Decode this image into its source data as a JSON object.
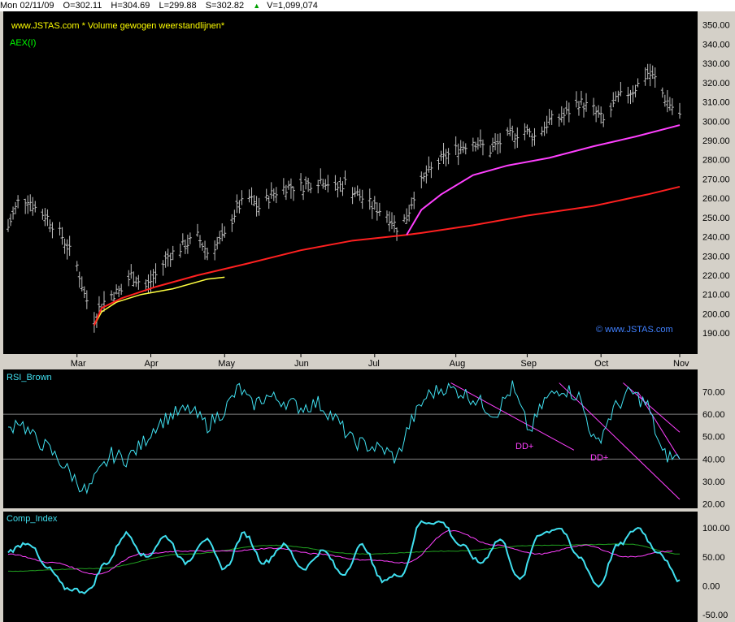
{
  "status": {
    "date": "Mon 02/11/09",
    "open": "O=302.11",
    "high": "H=304.69",
    "low": "L=299.88",
    "close": "S=302.82",
    "volume": "V=1,099,074"
  },
  "colors": {
    "background": "#000000",
    "bars": "#c0c0c0",
    "red_line": "#ff2020",
    "yellow_line": "#ffff40",
    "magenta_line": "#ff40ff",
    "cyan_line": "#40e0f0",
    "green_line": "#20a020",
    "header_text": "#ffff00",
    "aex_text": "#00ff00",
    "watermark": "#4080ff"
  },
  "price_panel": {
    "header": "www.JSTAS.com * Volume gewogen weerstandlijnen*",
    "symbol": "AEX(I)",
    "watermark": "© www.JSTAS.com",
    "y_ticks": [
      "350.00",
      "340.00",
      "330.00",
      "320.00",
      "310.00",
      "300.00",
      "290.00",
      "280.00",
      "270.00",
      "260.00",
      "250.00",
      "240.00",
      "230.00",
      "220.00",
      "210.00",
      "200.00",
      "190.00"
    ],
    "months": [
      "Mar",
      "Apr",
      "May",
      "Jun",
      "Jul",
      "Aug",
      "Sep",
      "Oct",
      "Nov"
    ]
  },
  "rsi_panel": {
    "title": "RSI_Brown",
    "y_ticks": [
      "70.00",
      "60.00",
      "50.00",
      "40.00",
      "30.00",
      "20.00"
    ],
    "annotations": [
      "DD+",
      "DD+"
    ]
  },
  "comp_panel": {
    "title": "Comp_Index",
    "y_ticks": [
      "100.00",
      "50.00",
      "0.00",
      "-50.00"
    ]
  },
  "chart_data": [
    {
      "type": "line",
      "series_kind": "ohlc-bars",
      "symbol": "AEX(I)",
      "x_range": [
        "2009-02-02",
        "2009-11-02"
      ],
      "ylim": [
        185,
        352
      ],
      "closes": [
        {
          "x": "2009-02-02",
          "y": 245
        },
        {
          "x": "2009-02-06",
          "y": 258
        },
        {
          "x": "2009-02-10",
          "y": 260
        },
        {
          "x": "2009-02-13",
          "y": 255
        },
        {
          "x": "2009-02-18",
          "y": 250
        },
        {
          "x": "2009-02-24",
          "y": 240
        },
        {
          "x": "2009-03-02",
          "y": 225
        },
        {
          "x": "2009-03-05",
          "y": 210
        },
        {
          "x": "2009-03-09",
          "y": 198
        },
        {
          "x": "2009-03-12",
          "y": 205
        },
        {
          "x": "2009-03-16",
          "y": 210
        },
        {
          "x": "2009-03-20",
          "y": 212
        },
        {
          "x": "2009-03-24",
          "y": 220
        },
        {
          "x": "2009-03-30",
          "y": 214
        },
        {
          "x": "2009-04-03",
          "y": 220
        },
        {
          "x": "2009-04-08",
          "y": 230
        },
        {
          "x": "2009-04-14",
          "y": 235
        },
        {
          "x": "2009-04-20",
          "y": 240
        },
        {
          "x": "2009-04-24",
          "y": 232
        },
        {
          "x": "2009-05-01",
          "y": 240
        },
        {
          "x": "2009-05-06",
          "y": 255
        },
        {
          "x": "2009-05-11",
          "y": 260
        },
        {
          "x": "2009-05-15",
          "y": 255
        },
        {
          "x": "2009-05-20",
          "y": 262
        },
        {
          "x": "2009-05-26",
          "y": 266
        },
        {
          "x": "2009-06-01",
          "y": 266
        },
        {
          "x": "2009-06-05",
          "y": 268
        },
        {
          "x": "2009-06-10",
          "y": 270
        },
        {
          "x": "2009-06-15",
          "y": 265
        },
        {
          "x": "2009-06-19",
          "y": 268
        },
        {
          "x": "2009-06-24",
          "y": 262
        },
        {
          "x": "2009-06-30",
          "y": 256
        },
        {
          "x": "2009-07-06",
          "y": 252
        },
        {
          "x": "2009-07-10",
          "y": 245
        },
        {
          "x": "2009-07-14",
          "y": 250
        },
        {
          "x": "2009-07-17",
          "y": 262
        },
        {
          "x": "2009-07-22",
          "y": 272
        },
        {
          "x": "2009-07-28",
          "y": 280
        },
        {
          "x": "2009-08-04",
          "y": 286
        },
        {
          "x": "2009-08-10",
          "y": 290
        },
        {
          "x": "2009-08-17",
          "y": 285
        },
        {
          "x": "2009-08-24",
          "y": 292
        },
        {
          "x": "2009-08-31",
          "y": 295
        },
        {
          "x": "2009-09-04",
          "y": 292
        },
        {
          "x": "2009-09-10",
          "y": 300
        },
        {
          "x": "2009-09-16",
          "y": 303
        },
        {
          "x": "2009-09-22",
          "y": 310
        },
        {
          "x": "2009-09-28",
          "y": 306
        },
        {
          "x": "2009-10-02",
          "y": 300
        },
        {
          "x": "2009-10-08",
          "y": 312
        },
        {
          "x": "2009-10-14",
          "y": 316
        },
        {
          "x": "2009-10-20",
          "y": 325
        },
        {
          "x": "2009-10-23",
          "y": 322
        },
        {
          "x": "2009-10-27",
          "y": 312
        },
        {
          "x": "2009-11-02",
          "y": 302.82
        }
      ]
    },
    {
      "type": "line",
      "title": "RSI_Brown",
      "ylim": [
        18,
        80
      ],
      "values": [
        {
          "x": "2009-02-02",
          "y": 52
        },
        {
          "x": "2009-02-06",
          "y": 58
        },
        {
          "x": "2009-02-12",
          "y": 50
        },
        {
          "x": "2009-02-18",
          "y": 45
        },
        {
          "x": "2009-02-24",
          "y": 38
        },
        {
          "x": "2009-03-02",
          "y": 30
        },
        {
          "x": "2009-03-06",
          "y": 25
        },
        {
          "x": "2009-03-10",
          "y": 32
        },
        {
          "x": "2009-03-16",
          "y": 42
        },
        {
          "x": "2009-03-22",
          "y": 40
        },
        {
          "x": "2009-03-28",
          "y": 46
        },
        {
          "x": "2009-04-03",
          "y": 55
        },
        {
          "x": "2009-04-10",
          "y": 60
        },
        {
          "x": "2009-04-17",
          "y": 62
        },
        {
          "x": "2009-04-24",
          "y": 55
        },
        {
          "x": "2009-05-01",
          "y": 62
        },
        {
          "x": "2009-05-07",
          "y": 72
        },
        {
          "x": "2009-05-12",
          "y": 64
        },
        {
          "x": "2009-05-18",
          "y": 68
        },
        {
          "x": "2009-05-25",
          "y": 66
        },
        {
          "x": "2009-06-01",
          "y": 63
        },
        {
          "x": "2009-06-08",
          "y": 65
        },
        {
          "x": "2009-06-15",
          "y": 58
        },
        {
          "x": "2009-06-22",
          "y": 48
        },
        {
          "x": "2009-06-28",
          "y": 46
        },
        {
          "x": "2009-07-05",
          "y": 44
        },
        {
          "x": "2009-07-10",
          "y": 40
        },
        {
          "x": "2009-07-15",
          "y": 55
        },
        {
          "x": "2009-07-22",
          "y": 68
        },
        {
          "x": "2009-07-29",
          "y": 72
        },
        {
          "x": "2009-08-05",
          "y": 70
        },
        {
          "x": "2009-08-12",
          "y": 66
        },
        {
          "x": "2009-08-19",
          "y": 60
        },
        {
          "x": "2009-08-26",
          "y": 72
        },
        {
          "x": "2009-09-02",
          "y": 52
        },
        {
          "x": "2009-09-08",
          "y": 66
        },
        {
          "x": "2009-09-15",
          "y": 72
        },
        {
          "x": "2009-09-22",
          "y": 68
        },
        {
          "x": "2009-09-29",
          "y": 46
        },
        {
          "x": "2009-10-06",
          "y": 62
        },
        {
          "x": "2009-10-13",
          "y": 70
        },
        {
          "x": "2009-10-20",
          "y": 64
        },
        {
          "x": "2009-10-26",
          "y": 42
        },
        {
          "x": "2009-11-02",
          "y": 40
        }
      ],
      "reference_lines": [
        60,
        40
      ]
    },
    {
      "type": "line",
      "title": "Comp_Index",
      "ylim": [
        -60,
        120
      ],
      "series": [
        {
          "values": [
            {
              "x": "2009-02-02",
              "y": 60
            },
            {
              "x": "2009-02-10",
              "y": 75
            },
            {
              "x": "2009-02-18",
              "y": 30
            },
            {
              "x": "2009-02-26",
              "y": -5
            },
            {
              "x": "2009-03-06",
              "y": -10
            },
            {
              "x": "2009-03-14",
              "y": 40
            },
            {
              "x": "2009-03-22",
              "y": 90
            },
            {
              "x": "2009-03-30",
              "y": 50
            },
            {
              "x": "2009-04-07",
              "y": 85
            },
            {
              "x": "2009-04-15",
              "y": 40
            },
            {
              "x": "2009-04-23",
              "y": 80
            },
            {
              "x": "2009-05-01",
              "y": 30
            },
            {
              "x": "2009-05-09",
              "y": 90
            },
            {
              "x": "2009-05-17",
              "y": 40
            },
            {
              "x": "2009-05-25",
              "y": 70
            },
            {
              "x": "2009-06-02",
              "y": 30
            },
            {
              "x": "2009-06-10",
              "y": 60
            },
            {
              "x": "2009-06-18",
              "y": 20
            },
            {
              "x": "2009-06-26",
              "y": 70
            },
            {
              "x": "2009-07-04",
              "y": 10
            },
            {
              "x": "2009-07-12",
              "y": 20
            },
            {
              "x": "2009-07-20",
              "y": 110
            },
            {
              "x": "2009-07-28",
              "y": 110
            },
            {
              "x": "2009-08-05",
              "y": 70
            },
            {
              "x": "2009-08-13",
              "y": 40
            },
            {
              "x": "2009-08-21",
              "y": 80
            },
            {
              "x": "2009-08-29",
              "y": 10
            },
            {
              "x": "2009-09-06",
              "y": 90
            },
            {
              "x": "2009-09-14",
              "y": 100
            },
            {
              "x": "2009-09-22",
              "y": 50
            },
            {
              "x": "2009-09-30",
              "y": 0
            },
            {
              "x": "2009-10-08",
              "y": 70
            },
            {
              "x": "2009-10-16",
              "y": 100
            },
            {
              "x": "2009-10-24",
              "y": 60
            },
            {
              "x": "2009-11-02",
              "y": 10
            }
          ]
        },
        {
          "values": [
            {
              "x": "2009-02-02",
              "y": 55
            },
            {
              "x": "2009-02-20",
              "y": 40
            },
            {
              "x": "2009-03-10",
              "y": 20
            },
            {
              "x": "2009-03-28",
              "y": 55
            },
            {
              "x": "2009-04-15",
              "y": 60
            },
            {
              "x": "2009-05-03",
              "y": 60
            },
            {
              "x": "2009-05-21",
              "y": 65
            },
            {
              "x": "2009-06-08",
              "y": 55
            },
            {
              "x": "2009-06-26",
              "y": 45
            },
            {
              "x": "2009-07-14",
              "y": 40
            },
            {
              "x": "2009-08-01",
              "y": 95
            },
            {
              "x": "2009-08-19",
              "y": 70
            },
            {
              "x": "2009-09-06",
              "y": 55
            },
            {
              "x": "2009-09-24",
              "y": 70
            },
            {
              "x": "2009-10-12",
              "y": 50
            },
            {
              "x": "2009-10-30",
              "y": 60
            }
          ]
        },
        {
          "values": [
            {
              "x": "2009-02-02",
              "y": 25
            },
            {
              "x": "2009-03-10",
              "y": 30
            },
            {
              "x": "2009-04-15",
              "y": 55
            },
            {
              "x": "2009-05-21",
              "y": 70
            },
            {
              "x": "2009-06-26",
              "y": 55
            },
            {
              "x": "2009-08-01",
              "y": 60
            },
            {
              "x": "2009-09-06",
              "y": 70
            },
            {
              "x": "2009-10-12",
              "y": 72
            },
            {
              "x": "2009-11-02",
              "y": 55
            }
          ]
        }
      ]
    }
  ]
}
